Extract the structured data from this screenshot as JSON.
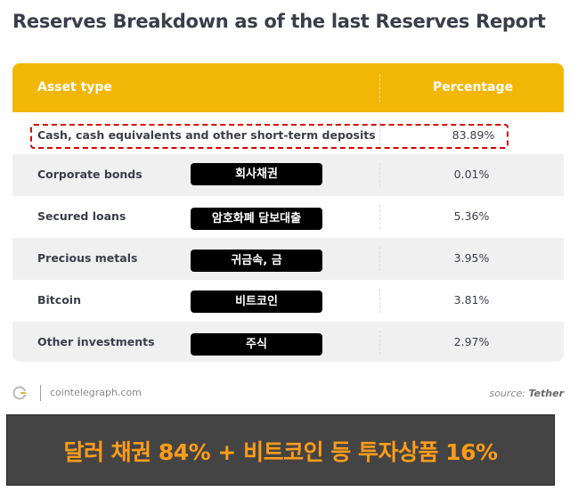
{
  "title": "Reserves Breakdown as of the last Reserves Report",
  "table": {
    "headers": {
      "asset": "Asset type",
      "percentage": "Percentage"
    },
    "rows": [
      {
        "asset": "Cash, cash equivalents and other short-term deposits",
        "percentage": "83.89%",
        "tag": ""
      },
      {
        "asset": "Corporate bonds",
        "percentage": "0.01%",
        "tag": "회사채권"
      },
      {
        "asset": "Secured loans",
        "percentage": "5.36%",
        "tag": "암호화폐 담보대출"
      },
      {
        "asset": "Precious metals",
        "percentage": "3.95%",
        "tag": "귀금속, 금"
      },
      {
        "asset": "Bitcoin",
        "percentage": "3.81%",
        "tag": "비트코인"
      },
      {
        "asset": "Other investments",
        "percentage": "2.97%",
        "tag": "주식"
      }
    ],
    "highlight_color": "#d40000",
    "header_color": "#f2b705"
  },
  "footer": {
    "site": "cointelegraph.com",
    "source_prefix": "source:",
    "source_name": "Tether",
    "icon": "cointelegraph-logo-icon"
  },
  "banner": {
    "text": "달러 채권 84% + 비트코인 등 투자상품 16%",
    "text_color": "#ff9c1a",
    "background": "#444444"
  }
}
